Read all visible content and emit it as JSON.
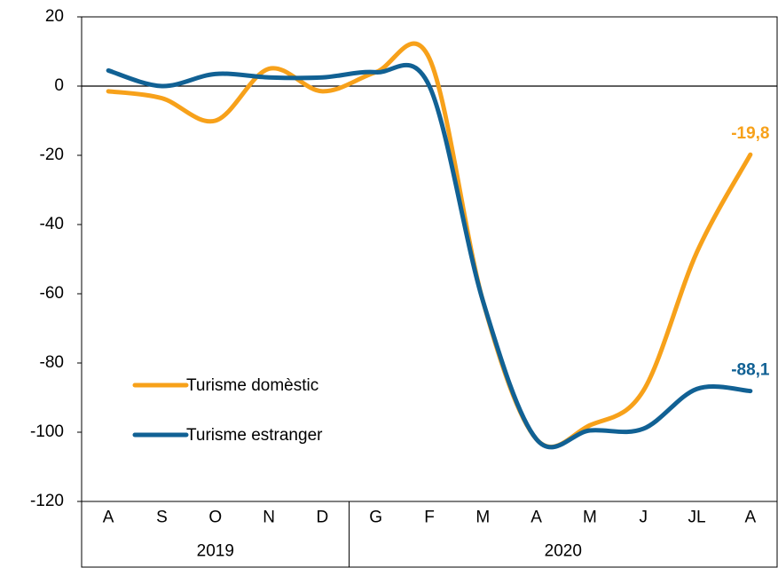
{
  "chart_data": {
    "type": "line",
    "categories": [
      "A",
      "S",
      "O",
      "N",
      "D",
      "G",
      "F",
      "M",
      "A",
      "M",
      "J",
      "JL",
      "A"
    ],
    "year_groups": [
      {
        "label": "2019",
        "count": 5
      },
      {
        "label": "2020",
        "count": 8
      }
    ],
    "series": [
      {
        "name": "Turisme domèstic",
        "color": "#f7a11a",
        "values": [
          -1.5,
          -3.5,
          -10,
          5,
          -1.5,
          4,
          8,
          -62,
          -102,
          -98,
          -88,
          -48,
          -19.8
        ],
        "value_labels": [
          null,
          null,
          null,
          null,
          null,
          null,
          null,
          null,
          null,
          null,
          null,
          null,
          "-19,8"
        ]
      },
      {
        "name": "Turisme estranger",
        "color": "#116194",
        "values": [
          4.5,
          0,
          3.5,
          2.5,
          2.5,
          4,
          0,
          -62,
          -102,
          -99.5,
          -99,
          -87.5,
          -88.1
        ],
        "value_labels": [
          null,
          null,
          null,
          null,
          null,
          null,
          null,
          null,
          null,
          null,
          null,
          null,
          "-88,1"
        ]
      }
    ],
    "ylim": [
      -120,
      20
    ],
    "yticks": [
      -120,
      -100,
      -80,
      -60,
      -40,
      -20,
      0,
      20
    ],
    "grid": false,
    "legend": "lower left"
  }
}
